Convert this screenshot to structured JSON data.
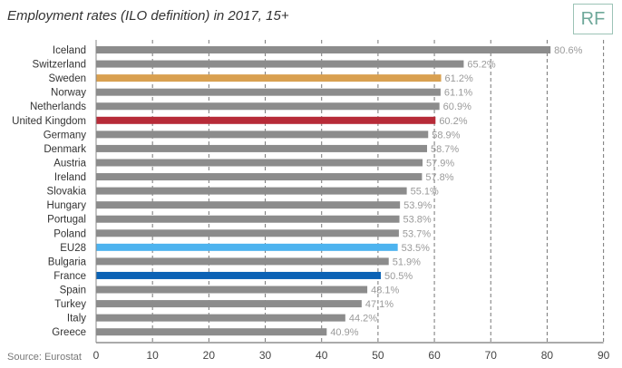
{
  "header": {
    "title": "Employment rates (ILO definition) in 2017, 15+",
    "logo_text": "RF"
  },
  "footer": {
    "source": "Source: Eurostat"
  },
  "colors": {
    "default_bar": "#8c8c8c",
    "sweden": "#d9a050",
    "united_kingdom": "#b72b38",
    "eu28": "#4db3ef",
    "france": "#0b62b5",
    "grid": "#777777",
    "logo": "#6fa89a"
  },
  "chart_data": {
    "type": "bar",
    "orientation": "horizontal",
    "title": "Employment rates (ILO definition) in 2017, 15+",
    "categories": [
      "Iceland",
      "Switzerland",
      "Sweden",
      "Norway",
      "Netherlands",
      "United Kingdom",
      "Germany",
      "Denmark",
      "Austria",
      "Ireland",
      "Slovakia",
      "Hungary",
      "Portugal",
      "Poland",
      "EU28",
      "Bulgaria",
      "France",
      "Spain",
      "Turkey",
      "Italy",
      "Greece"
    ],
    "values": [
      80.6,
      65.2,
      61.2,
      61.1,
      60.9,
      60.2,
      58.9,
      58.7,
      57.9,
      57.8,
      55.1,
      53.9,
      53.8,
      53.7,
      53.5,
      51.9,
      50.5,
      48.1,
      47.1,
      44.2,
      40.9
    ],
    "value_labels": [
      "80.6%",
      "65.2%",
      "61.2%",
      "61.1%",
      "60.9%",
      "60.2%",
      "58.9%",
      "58.7%",
      "57.9%",
      "57.8%",
      "55.1%",
      "53.9%",
      "53.8%",
      "53.7%",
      "53.5%",
      "51.9%",
      "50.5%",
      "48.1%",
      "47.1%",
      "44.2%",
      "40.9%"
    ],
    "bar_colors": [
      "#8c8c8c",
      "#8c8c8c",
      "#d9a050",
      "#8c8c8c",
      "#8c8c8c",
      "#b72b38",
      "#8c8c8c",
      "#8c8c8c",
      "#8c8c8c",
      "#8c8c8c",
      "#8c8c8c",
      "#8c8c8c",
      "#8c8c8c",
      "#8c8c8c",
      "#4db3ef",
      "#8c8c8c",
      "#0b62b5",
      "#8c8c8c",
      "#8c8c8c",
      "#8c8c8c",
      "#8c8c8c"
    ],
    "xlim": [
      0,
      90
    ],
    "xticks": [
      0,
      10,
      20,
      30,
      40,
      50,
      60,
      70,
      80,
      90
    ],
    "xtick_labels": [
      "0",
      "10",
      "20",
      "30",
      "40",
      "50",
      "60",
      "70",
      "80",
      "90"
    ],
    "grid": "vertical dashed",
    "legend": "none"
  }
}
